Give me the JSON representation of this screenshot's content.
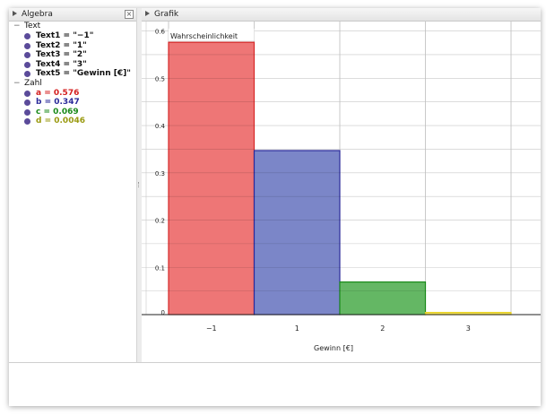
{
  "algebra": {
    "title": "Algebra",
    "close": "×",
    "groups": [
      {
        "label": "Text",
        "items": [
          {
            "text": "Text1 = \"−1\"",
            "color": "#111111"
          },
          {
            "text": "Text2 = \"1\"",
            "color": "#111111"
          },
          {
            "text": "Text3 = \"2\"",
            "color": "#111111"
          },
          {
            "text": "Text4 = \"3\"",
            "color": "#111111"
          },
          {
            "text": "Text5 = \"Gewinn [€]\"",
            "color": "#111111"
          }
        ]
      },
      {
        "label": "Zahl",
        "items": [
          {
            "text": "a = 0.576",
            "color": "#d42020"
          },
          {
            "text": "b = 0.347",
            "color": "#2a2a9a"
          },
          {
            "text": "c = 0.069",
            "color": "#1a8a1a"
          },
          {
            "text": "d = 0.0046",
            "color": "#9a9a10"
          }
        ]
      }
    ]
  },
  "grafik": {
    "title": "Grafik"
  },
  "chart_data": {
    "type": "bar",
    "title": "",
    "ylabel": "Wahrscheinlichkeit",
    "xlabel": "Gewinn [€]",
    "categories": [
      "−1",
      "1",
      "2",
      "3"
    ],
    "values": [
      0.576,
      0.347,
      0.069,
      0.0046
    ],
    "colors": [
      "#ee7676",
      "#7b86c8",
      "#64b764",
      "#f2e25a"
    ],
    "border_colors": [
      "#d62828",
      "#2a2a9a",
      "#1a8a1a",
      "#e8d020"
    ],
    "ylim": [
      0,
      0.62
    ],
    "yticks": [
      "0",
      "0.1",
      "0.2",
      "0.3",
      "0.4",
      "0.5",
      "0.6"
    ],
    "grid": true
  }
}
